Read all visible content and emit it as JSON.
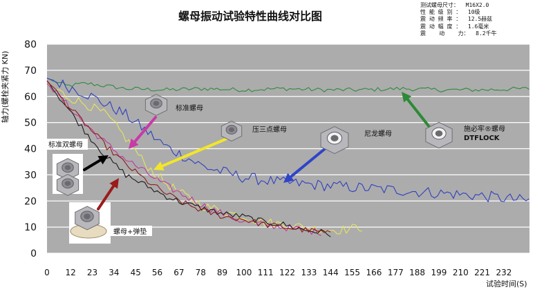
{
  "header": {
    "title": "螺母振动试验特性曲线对比图",
    "specs": [
      "测试螺母尺寸：  M16X2.0",
      "性 能 级 别 ：  10级",
      "震 动 频 率 ：  12.5赫兹",
      "震 动 幅 度 ：  1.6毫米",
      "震    动    力：  8.2千牛"
    ]
  },
  "colors": {
    "plot_bg": "#acacac",
    "grid": "#ffffff",
    "green": "#2e8b3a",
    "blue": "#2f3fbf",
    "magenta": "#c0399a",
    "yellow": "#e6e65a",
    "black": "#1a1a1a",
    "darkred": "#8b1a1a",
    "arrow_black": "#000000",
    "arrow_darkred": "#9b1b1b",
    "arrow_magenta": "#c83aa6",
    "arrow_yellow": "#f2e62a",
    "arrow_blue": "#2f44c8",
    "arrow_green": "#2d8a36"
  },
  "chart_data": {
    "type": "line",
    "title": "螺母振动试验特性曲线对比图",
    "xlabel": "试验时间(S)",
    "ylabel": "轴力(螺栓夹紧力 KN)",
    "xlim": [
      0,
      245
    ],
    "ylim": [
      0,
      80
    ],
    "yticks": [
      0,
      10,
      20,
      30,
      40,
      50,
      60,
      70,
      80
    ],
    "xticks": [
      0,
      12,
      23,
      34,
      45,
      56,
      67,
      78,
      89,
      100,
      111,
      122,
      133,
      144,
      155,
      166,
      177,
      188,
      199,
      210,
      221,
      232
    ],
    "grid": "horizontal",
    "series": [
      {
        "name": "施必牢®螺母 DTFLOCK",
        "color": "green",
        "x": [
          0,
          10,
          20,
          40,
          60,
          80,
          100,
          120,
          140,
          160,
          180,
          200,
          220,
          245
        ],
        "y": [
          67,
          64,
          65,
          63,
          62.5,
          63,
          62.5,
          63,
          62.5,
          62.5,
          63,
          62.5,
          62.5,
          63
        ]
      },
      {
        "name": "尼龙螺母",
        "color": "blue",
        "x": [
          0,
          10,
          20,
          30,
          40,
          50,
          60,
          70,
          80,
          90,
          100,
          110,
          120,
          140,
          160,
          180,
          200,
          220,
          245
        ],
        "y": [
          67,
          64,
          61,
          57,
          53,
          47,
          41,
          37,
          33,
          31,
          29,
          28,
          27,
          26,
          25,
          24,
          23,
          22,
          20
        ]
      },
      {
        "name": "压三点螺母",
        "color": "yellow",
        "x": [
          0,
          10,
          20,
          30,
          40,
          50,
          60,
          70,
          80,
          90,
          100,
          110,
          120,
          130,
          140,
          150,
          160
        ],
        "y": [
          65,
          60,
          57,
          53,
          44,
          34,
          27,
          22,
          18,
          16,
          14,
          12,
          11,
          10,
          9,
          9,
          10
        ]
      },
      {
        "name": "标准螺母",
        "color": "magenta",
        "x": [
          0,
          10,
          20,
          30,
          40,
          50,
          60,
          70,
          80,
          90,
          100,
          110,
          120,
          130,
          140
        ],
        "y": [
          65,
          57,
          49,
          42,
          36,
          31,
          26,
          22,
          18,
          15,
          12,
          11,
          10,
          9,
          8
        ]
      },
      {
        "name": "标准双螺母",
        "color": "black",
        "x": [
          0,
          10,
          20,
          30,
          40,
          50,
          60,
          70,
          80,
          90,
          100,
          110,
          120,
          130,
          140,
          145
        ],
        "y": [
          66,
          56,
          46,
          37,
          30,
          26,
          22,
          19,
          17,
          15,
          14,
          12,
          11,
          9,
          8,
          7
        ]
      },
      {
        "name": "螺母+弹垫",
        "color": "darkred",
        "x": [
          0,
          10,
          20,
          30,
          40,
          50,
          60,
          70,
          80,
          90,
          100,
          110,
          120,
          130,
          140,
          145
        ],
        "y": [
          66,
          57,
          49,
          41,
          34,
          28,
          23,
          19,
          16,
          14,
          13,
          11,
          10,
          9,
          8,
          7
        ]
      }
    ]
  },
  "annotations": {
    "standard_nut": "标准螺母",
    "three_point_nut": "压三点螺母",
    "nylon_nut": "尼龙螺母",
    "double_nut": "标准双螺母",
    "nut_washer": "螺母+弹垫",
    "dtflock_top": "施必牢®螺母",
    "dtflock_bottom": "DTFLOCK"
  }
}
